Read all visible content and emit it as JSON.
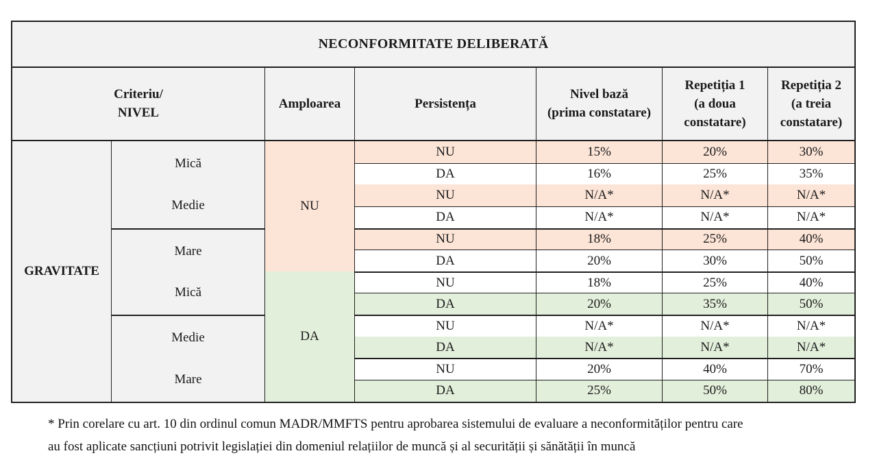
{
  "title": "NECONFORMITATE DELIBERATĂ",
  "header": {
    "criteriu": [
      "Criteriu/",
      "NIVEL"
    ],
    "amploarea": "Amploarea",
    "persistenta": "Persistența",
    "nivel_baza": [
      "Nivel bază",
      "(prima constatare)"
    ],
    "repetitia1": [
      "Repetiția 1",
      "(a doua",
      "constatare)"
    ],
    "repetitia2": [
      "Repetiția 2",
      "(a treia",
      "constatare)"
    ]
  },
  "gravitate": "GRAVITATE",
  "levels": [
    [
      "Mică",
      "Medie"
    ],
    [
      "Mare",
      "Mică"
    ],
    [
      "Medie",
      "Mare"
    ]
  ],
  "amploarea_values": [
    "NU",
    "DA"
  ],
  "rows": [
    {
      "persistenta": "NU",
      "nivel_baza": "15%",
      "rep1": "20%",
      "rep2": "30%"
    },
    {
      "persistenta": "DA",
      "nivel_baza": "16%",
      "rep1": "25%",
      "rep2": "35%"
    },
    {
      "persistenta": "NU",
      "nivel_baza": "N/A*",
      "rep1": "N/A*",
      "rep2": "N/A*"
    },
    {
      "persistenta": "DA",
      "nivel_baza": "N/A*",
      "rep1": "N/A*",
      "rep2": "N/A*"
    },
    {
      "persistenta": "NU",
      "nivel_baza": "18%",
      "rep1": "25%",
      "rep2": "40%"
    },
    {
      "persistenta": "DA",
      "nivel_baza": "20%",
      "rep1": "30%",
      "rep2": "50%"
    },
    {
      "persistenta": "NU",
      "nivel_baza": "18%",
      "rep1": "25%",
      "rep2": "40%"
    },
    {
      "persistenta": "DA",
      "nivel_baza": "20%",
      "rep1": "35%",
      "rep2": "50%"
    },
    {
      "persistenta": "NU",
      "nivel_baza": "N/A*",
      "rep1": "N/A*",
      "rep2": "N/A*"
    },
    {
      "persistenta": "DA",
      "nivel_baza": "N/A*",
      "rep1": "N/A*",
      "rep2": "N/A*"
    },
    {
      "persistenta": "NU",
      "nivel_baza": "20%",
      "rep1": "40%",
      "rep2": "70%"
    },
    {
      "persistenta": "DA",
      "nivel_baza": "25%",
      "rep1": "50%",
      "rep2": "80%"
    }
  ],
  "footnote": [
    "* Prin corelare cu art. 10 din ordinul comun MADR/MMFTS pentru aprobarea sistemului de evaluare a neconformităților pentru care",
    "au fost aplicate sancțiuni potrivit legislației din domeniul relațiilor de muncă și al securității și sănătății în muncă"
  ],
  "colors": {
    "header_bg": "#f2f2f2",
    "peach": "#fce4d6",
    "green": "#e2efda",
    "border": "#1f1f1f"
  }
}
